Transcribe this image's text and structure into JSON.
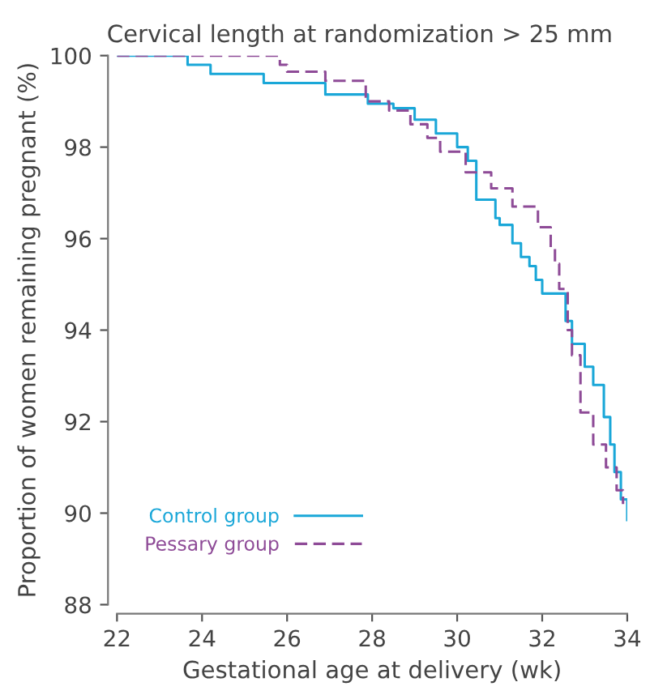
{
  "chart_data": {
    "type": "step",
    "title": "Cervical length at randomization > 25 mm",
    "xlabel": "Gestational age at delivery (wk)",
    "ylabel": "Proportion of women remaining pregnant (%)",
    "xlim": [
      22,
      34
    ],
    "xticks": [
      22,
      24,
      26,
      28,
      30,
      32,
      34
    ],
    "ylim": [
      88,
      100
    ],
    "yticks": [
      88,
      90,
      92,
      94,
      96,
      98,
      100
    ],
    "grid": false,
    "legend": "bottom left",
    "series": [
      {
        "name": "Control group",
        "color": "#1aa7d8",
        "line_style": "solid",
        "x": [
          22,
          23.66,
          24.2,
          25.45,
          26.9,
          27.9,
          28.5,
          29.0,
          29.5,
          30.0,
          30.25,
          30.45,
          30.9,
          31.0,
          31.3,
          31.5,
          31.7,
          31.85,
          32.0,
          32.55,
          32.7,
          33.0,
          33.2,
          33.45,
          33.6,
          33.7,
          33.85,
          34.0
        ],
        "values": [
          100,
          99.8,
          99.6,
          99.4,
          99.15,
          98.95,
          98.85,
          98.6,
          98.3,
          98.0,
          97.7,
          96.85,
          96.45,
          96.3,
          95.9,
          95.6,
          95.4,
          95.1,
          94.8,
          94.2,
          93.7,
          93.2,
          92.8,
          92.1,
          91.5,
          90.9,
          90.3,
          89.85
        ]
      },
      {
        "name": "Pessary group",
        "color": "#8e4b97",
        "line_style": "dashed",
        "x": [
          22,
          25.83,
          26.0,
          26.9,
          27.85,
          28.4,
          28.9,
          29.3,
          29.6,
          30.2,
          30.8,
          31.3,
          31.9,
          32.2,
          32.3,
          32.4,
          32.6,
          32.7,
          32.9,
          33.2,
          33.5,
          33.75,
          33.9
        ],
        "values": [
          100,
          99.8,
          99.65,
          99.45,
          99.0,
          98.8,
          98.5,
          98.2,
          97.9,
          97.45,
          97.1,
          96.7,
          96.25,
          95.8,
          95.45,
          94.9,
          94.0,
          93.45,
          92.2,
          91.5,
          91.0,
          90.5,
          90.2
        ]
      }
    ]
  }
}
